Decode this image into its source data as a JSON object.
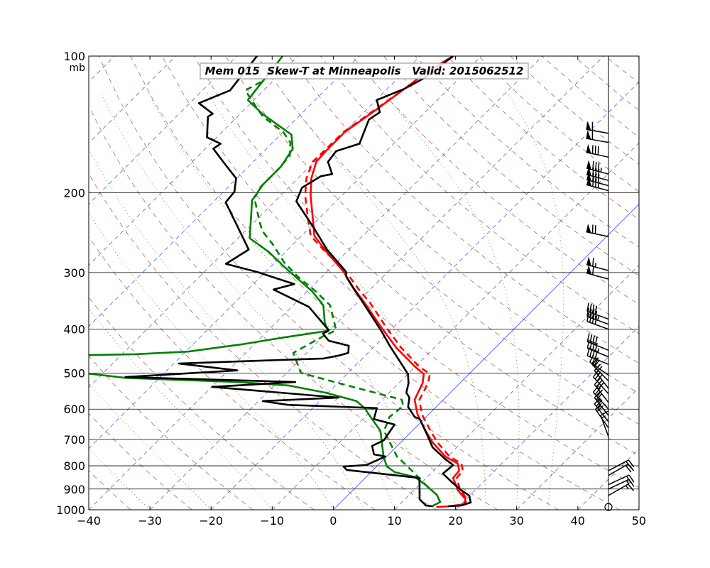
{
  "chart_data": {
    "type": "line",
    "title": "Mem 015  Skew-T at Minneapolis   Valid: 2015062512",
    "xlabel": "",
    "ylabel": "mb",
    "xlim": [
      -40,
      50
    ],
    "ylim": [
      1000,
      100
    ],
    "grid": true,
    "xticks": [
      {
        "value": -40,
        "label": "−40"
      },
      {
        "value": -30,
        "label": "−30"
      },
      {
        "value": -20,
        "label": "−20"
      },
      {
        "value": -10,
        "label": "−10"
      },
      {
        "value": 0,
        "label": "0"
      },
      {
        "value": 10,
        "label": "10"
      },
      {
        "value": 20,
        "label": "20"
      },
      {
        "value": 30,
        "label": "30"
      },
      {
        "value": 40,
        "label": "40"
      },
      {
        "value": 50,
        "label": "50"
      }
    ],
    "yticks": [
      {
        "value": 100,
        "label": "100"
      },
      {
        "value": 200,
        "label": "200"
      },
      {
        "value": 300,
        "label": "300"
      },
      {
        "value": 400,
        "label": "400"
      },
      {
        "value": 500,
        "label": "500"
      },
      {
        "value": 600,
        "label": "600"
      },
      {
        "value": 700,
        "label": "700"
      },
      {
        "value": 800,
        "label": "800"
      },
      {
        "value": 900,
        "label": "900"
      },
      {
        "value": 1000,
        "label": "1000"
      }
    ],
    "background": {
      "isotherm_step_c": 10,
      "isotherm_color": "#3344ff",
      "dry_adiabat_theta_k": [
        230,
        240,
        250,
        260,
        270,
        280,
        290,
        300,
        310,
        320,
        330,
        340,
        350,
        360,
        370,
        380,
        390,
        400,
        410,
        420,
        430,
        440,
        450,
        460,
        470,
        480,
        490,
        500
      ],
      "dry_adiabat_color": "#b84a4a",
      "moist_adiabat_start_c": [
        -30,
        -20,
        -10,
        0,
        5,
        10,
        15,
        20,
        25,
        30,
        35
      ],
      "moist_adiabat_color": "#33aa33"
    },
    "series": [
      {
        "color": "#ff0000",
        "dash": "solid",
        "points": [
          [
            100,
            -54.6
          ],
          [
            108,
            -56.3
          ],
          [
            118,
            -57.2
          ],
          [
            131,
            -58.4
          ],
          [
            147,
            -59.9
          ],
          [
            161,
            -59.9
          ],
          [
            171,
            -59.7
          ],
          [
            186,
            -57.8
          ],
          [
            203,
            -55.1
          ],
          [
            228,
            -51.0
          ],
          [
            249,
            -47.9
          ],
          [
            270,
            -43.3
          ],
          [
            298,
            -37.4
          ],
          [
            326,
            -32.7
          ],
          [
            350,
            -28.7
          ],
          [
            399,
            -21.6
          ],
          [
            440,
            -16.1
          ],
          [
            484,
            -10.0
          ],
          [
            502,
            -7.4
          ],
          [
            526,
            -6.1
          ],
          [
            572,
            -4.7
          ],
          [
            615,
            -1.9
          ],
          [
            670,
            2.2
          ],
          [
            710,
            5.2
          ],
          [
            763,
            9.6
          ],
          [
            791,
            12.8
          ],
          [
            820,
            14.2
          ],
          [
            851,
            14.4
          ],
          [
            904,
            17.1
          ],
          [
            948,
            19.9
          ],
          [
            972,
            20.5
          ],
          [
            982,
            18.5
          ],
          [
            986,
            16.4
          ]
        ]
      },
      {
        "color": "#ff0000",
        "dash": "dashed",
        "points": [
          [
            100,
            -54.6
          ],
          [
            108,
            -56.3
          ],
          [
            118,
            -57.2
          ],
          [
            131,
            -58.6
          ],
          [
            147,
            -60.1
          ],
          [
            161,
            -60.2
          ],
          [
            171,
            -60.3
          ],
          [
            186,
            -58.6
          ],
          [
            203,
            -56.0
          ],
          [
            228,
            -51.8
          ],
          [
            249,
            -48.5
          ],
          [
            270,
            -43.5
          ],
          [
            298,
            -37.0
          ],
          [
            326,
            -32.0
          ],
          [
            350,
            -27.8
          ],
          [
            399,
            -20.8
          ],
          [
            440,
            -15.3
          ],
          [
            484,
            -9.3
          ],
          [
            502,
            -6.4
          ],
          [
            526,
            -5.2
          ],
          [
            572,
            -3.9
          ],
          [
            615,
            -1.2
          ],
          [
            670,
            3.0
          ],
          [
            710,
            6.0
          ],
          [
            763,
            10.3
          ],
          [
            791,
            13.4
          ],
          [
            820,
            14.8
          ],
          [
            851,
            15.0
          ],
          [
            904,
            17.5
          ],
          [
            948,
            20.2
          ],
          [
            972,
            20.6
          ],
          [
            982,
            18.6
          ]
        ]
      },
      {
        "color": "#008000",
        "dash": "solid",
        "points": [
          [
            100,
            -82.5
          ],
          [
            125,
            -81.0
          ],
          [
            134,
            -76.4
          ],
          [
            149,
            -68.2
          ],
          [
            160,
            -65.7
          ],
          [
            175,
            -64.7
          ],
          [
            192,
            -64.7
          ],
          [
            208,
            -63.9
          ],
          [
            252,
            -58.1
          ],
          [
            270,
            -52.8
          ],
          [
            296,
            -46.7
          ],
          [
            330,
            -39.2
          ],
          [
            354,
            -35.1
          ],
          [
            388,
            -31.9
          ],
          [
            403,
            -30.1
          ],
          [
            417,
            -36.3
          ],
          [
            432,
            -42.1
          ],
          [
            448,
            -49.6
          ],
          [
            454,
            -57.9
          ],
          [
            456,
            -65.3
          ],
          [
            478,
            -71.4
          ],
          [
            501,
            -62.3
          ],
          [
            512,
            -55.6
          ],
          [
            523,
            -36.6
          ],
          [
            532,
            -27.7
          ],
          [
            552,
            -20.4
          ],
          [
            576,
            -14.0
          ],
          [
            597,
            -11.5
          ],
          [
            631,
            -8.5
          ],
          [
            670,
            -5.2
          ],
          [
            710,
            -3.1
          ],
          [
            763,
            -0.5
          ],
          [
            803,
            1.7
          ],
          [
            826,
            3.9
          ],
          [
            847,
            8.0
          ],
          [
            881,
            11.0
          ],
          [
            927,
            14.5
          ],
          [
            961,
            16.2
          ],
          [
            982,
            15.6
          ]
        ]
      },
      {
        "color": "#008000",
        "dash": "dashed",
        "points": [
          [
            114,
            -81.8
          ],
          [
            119,
            -83.0
          ],
          [
            129,
            -78.7
          ],
          [
            136,
            -75.8
          ],
          [
            147,
            -70.0
          ],
          [
            155,
            -67.1
          ],
          [
            166,
            -65.0
          ],
          [
            179,
            -64.7
          ],
          [
            195,
            -64.7
          ],
          [
            206,
            -63.8
          ],
          [
            230,
            -59.5
          ],
          [
            243,
            -57.2
          ],
          [
            261,
            -53.1
          ],
          [
            285,
            -48.5
          ],
          [
            307,
            -43.8
          ],
          [
            330,
            -38.6
          ],
          [
            354,
            -34.0
          ],
          [
            402,
            -28.9
          ],
          [
            414,
            -30.0
          ],
          [
            451,
            -32.2
          ],
          [
            499,
            -27.7
          ],
          [
            526,
            -19.8
          ],
          [
            572,
            -6.8
          ],
          [
            591,
            -5.5
          ],
          [
            624,
            -6.0
          ],
          [
            670,
            -4.6
          ],
          [
            763,
            1.7
          ],
          [
            803,
            5.1
          ],
          [
            832,
            7.4
          ],
          [
            881,
            11.0
          ],
          [
            927,
            14.5
          ],
          [
            961,
            16.2
          ],
          [
            982,
            15.6
          ]
        ]
      },
      {
        "color": "#000000",
        "dash": "solid",
        "points": [
          [
            100,
            -54.6
          ],
          [
            112,
            -55.8
          ],
          [
            118,
            -57.2
          ],
          [
            125,
            -59.9
          ],
          [
            133,
            -57.4
          ],
          [
            138,
            -58.0
          ],
          [
            156,
            -55.6
          ],
          [
            162,
            -58.2
          ],
          [
            171,
            -57.8
          ],
          [
            182,
            -55.1
          ],
          [
            184,
            -56.6
          ],
          [
            195,
            -57.8
          ],
          [
            209,
            -56.5
          ],
          [
            240,
            -49.1
          ],
          [
            267,
            -43.6
          ],
          [
            298,
            -37.0
          ],
          [
            307,
            -35.9
          ],
          [
            324,
            -33.1
          ],
          [
            345,
            -29.7
          ],
          [
            405,
            -21.2
          ],
          [
            435,
            -17.6
          ],
          [
            502,
            -10.0
          ],
          [
            526,
            -8.4
          ],
          [
            552,
            -7.2
          ],
          [
            566,
            -5.9
          ],
          [
            593,
            -4.6
          ],
          [
            624,
            -1.9
          ],
          [
            631,
            -0.7
          ],
          [
            685,
            3.2
          ],
          [
            728,
            6.0
          ],
          [
            774,
            10.1
          ],
          [
            797,
            12.3
          ],
          [
            832,
            12.0
          ],
          [
            863,
            14.4
          ],
          [
            904,
            17.6
          ],
          [
            930,
            19.9
          ],
          [
            964,
            21.3
          ],
          [
            979,
            20.2
          ],
          [
            982,
            18.2
          ]
        ]
      },
      {
        "color": "#000000",
        "dash": "solid",
        "points": [
          [
            100,
            -86.7
          ],
          [
            119,
            -85.5
          ],
          [
            127,
            -88.5
          ],
          [
            134,
            -84.5
          ],
          [
            136,
            -84.8
          ],
          [
            151,
            -81.6
          ],
          [
            156,
            -78.3
          ],
          [
            160,
            -78.7
          ],
          [
            172,
            -74.6
          ],
          [
            186,
            -70.1
          ],
          [
            199,
            -68.2
          ],
          [
            210,
            -67.9
          ],
          [
            267,
            -56.4
          ],
          [
            287,
            -57.8
          ],
          [
            299,
            -51.4
          ],
          [
            318,
            -43.3
          ],
          [
            327,
            -45.8
          ],
          [
            357,
            -37.2
          ],
          [
            402,
            -30.1
          ],
          [
            409,
            -30.5
          ],
          [
            424,
            -28.4
          ],
          [
            435,
            -24.3
          ],
          [
            451,
            -23.2
          ],
          [
            457,
            -24.3
          ],
          [
            464,
            -26.3
          ],
          [
            476,
            -49.2
          ],
          [
            493,
            -38.5
          ],
          [
            510,
            -55.7
          ],
          [
            523,
            -27.1
          ],
          [
            536,
            -39.9
          ],
          [
            566,
            -17.5
          ],
          [
            576,
            -29.3
          ],
          [
            587,
            -24.6
          ],
          [
            597,
            -9.5
          ],
          [
            631,
            -8.2
          ],
          [
            649,
            -3.9
          ],
          [
            703,
            -3.1
          ],
          [
            723,
            -4.1
          ],
          [
            755,
            -2.4
          ],
          [
            763,
            -0.2
          ],
          [
            797,
            -1.9
          ],
          [
            803,
            -5.4
          ],
          [
            817,
            -4.3
          ],
          [
            851,
            8.9
          ],
          [
            948,
            12.4
          ],
          [
            979,
            14.5
          ],
          [
            982,
            15.6
          ]
        ]
      }
    ],
    "wind_barbs": [
      {
        "p": 148,
        "dir": 280,
        "speed": 60
      },
      {
        "p": 155,
        "dir": 280,
        "speed": 60
      },
      {
        "p": 167,
        "dir": 282,
        "speed": 80
      },
      {
        "p": 182,
        "dir": 285,
        "speed": 85
      },
      {
        "p": 188,
        "dir": 285,
        "speed": 80
      },
      {
        "p": 193,
        "dir": 285,
        "speed": 80
      },
      {
        "p": 198,
        "dir": 285,
        "speed": 75
      },
      {
        "p": 250,
        "dir": 282,
        "speed": 70
      },
      {
        "p": 297,
        "dir": 285,
        "speed": 65
      },
      {
        "p": 310,
        "dir": 285,
        "speed": 60
      },
      {
        "p": 380,
        "dir": 290,
        "speed": 40
      },
      {
        "p": 390,
        "dir": 290,
        "speed": 45
      },
      {
        "p": 400,
        "dir": 290,
        "speed": 40
      },
      {
        "p": 445,
        "dir": 292,
        "speed": 40
      },
      {
        "p": 460,
        "dir": 292,
        "speed": 45
      },
      {
        "p": 478,
        "dir": 292,
        "speed": 40
      },
      {
        "p": 505,
        "dir": 305,
        "speed": 30
      },
      {
        "p": 520,
        "dir": 315,
        "speed": 25
      },
      {
        "p": 540,
        "dir": 322,
        "speed": 25
      },
      {
        "p": 555,
        "dir": 318,
        "speed": 30
      },
      {
        "p": 580,
        "dir": 322,
        "speed": 30
      },
      {
        "p": 600,
        "dir": 318,
        "speed": 30
      },
      {
        "p": 620,
        "dir": 322,
        "speed": 25
      },
      {
        "p": 640,
        "dir": 322,
        "speed": 25
      },
      {
        "p": 660,
        "dir": 325,
        "speed": 20
      },
      {
        "p": 690,
        "dir": 340,
        "speed": 15
      },
      {
        "p": 820,
        "dir": 62,
        "speed": 20
      },
      {
        "p": 840,
        "dir": 60,
        "speed": 20
      },
      {
        "p": 880,
        "dir": 65,
        "speed": 20
      },
      {
        "p": 900,
        "dir": 65,
        "speed": 15
      },
      {
        "p": 930,
        "dir": 60,
        "speed": 15
      },
      {
        "p": 986,
        "dir": 0,
        "speed": 0
      }
    ]
  }
}
